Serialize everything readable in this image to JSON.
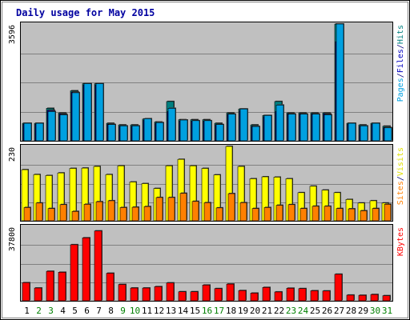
{
  "chart_data": {
    "type": "bar",
    "title": "Daily usage for May 2015",
    "days": [
      1,
      2,
      3,
      4,
      5,
      6,
      7,
      8,
      9,
      10,
      11,
      12,
      13,
      14,
      15,
      16,
      17,
      18,
      19,
      20,
      21,
      22,
      23,
      24,
      25,
      26,
      27,
      28,
      29,
      30,
      31
    ],
    "weekend_days": [
      2,
      3,
      9,
      10,
      16,
      17,
      23,
      24,
      30,
      31
    ],
    "panels": [
      {
        "id": "top",
        "ymax": 3596,
        "max_label": "3596",
        "legend": [
          {
            "text": "Pages",
            "color": "#00a0e0"
          },
          {
            "text": "/",
            "color": "#000080"
          },
          {
            "text": "Files",
            "color": "#0000c0"
          },
          {
            "text": "/",
            "color": "#000080"
          },
          {
            "text": "Hits",
            "color": "#008080"
          }
        ],
        "series": [
          {
            "name": "Hits",
            "color": "#008080",
            "values": [
              540,
              540,
              1000,
              860,
              1540,
              1760,
              1760,
              540,
              490,
              490,
              670,
              580,
              1210,
              650,
              650,
              650,
              540,
              860,
              980,
              490,
              780,
              1210,
              860,
              860,
              860,
              860,
              3596,
              540,
              490,
              540,
              450
            ]
          },
          {
            "name": "Files",
            "color": "#0000c0",
            "values": [
              510,
              510,
              940,
              830,
              1500,
              1720,
              1720,
              510,
              450,
              450,
              630,
              540,
              900,
              610,
              610,
              610,
              500,
              820,
              930,
              450,
              740,
              900,
              830,
              830,
              830,
              830,
              3050,
              510,
              450,
              510,
              410
            ]
          },
          {
            "name": "Pages",
            "color": "#00a0e0",
            "values": [
              540,
              540,
              900,
              800,
              1480,
              1760,
              1760,
              500,
              460,
              460,
              680,
              560,
              1000,
              640,
              620,
              620,
              500,
              820,
              980,
              440,
              780,
              1100,
              820,
              820,
              820,
              800,
              3596,
              540,
              460,
              540,
              400
            ]
          }
        ]
      },
      {
        "id": "mid",
        "ymax": 230,
        "max_label": "230",
        "legend": [
          {
            "text": "Sites",
            "color": "#ff8000"
          },
          {
            "text": "/",
            "color": "#000080"
          },
          {
            "text": "Visits",
            "color": "#e0e000"
          }
        ],
        "series": [
          {
            "name": "Visits",
            "color": "#ffff00",
            "values": [
              158,
              143,
              140,
              148,
              162,
              163,
              168,
              143,
              170,
              120,
              115,
              100,
              170,
              190,
              170,
              162,
              142,
              230,
              168,
              130,
              136,
              135,
              130,
              87,
              107,
              95,
              87,
              66,
              55,
              62,
              55
            ]
          },
          {
            "name": "Sites",
            "color": "#ff8000",
            "values": [
              41,
              55,
              38,
              50,
              29,
              51,
              59,
              62,
              41,
              42,
              44,
              72,
              72,
              85,
              60,
              56,
              40,
              84,
              56,
              38,
              41,
              48,
              50,
              38,
              45,
              45,
              38,
              37,
              31,
              38,
              51
            ]
          }
        ]
      },
      {
        "id": "bottom",
        "ymax": 37800,
        "max_label": "37800",
        "legend": [
          {
            "text": "KBytes",
            "color": "#ff0000"
          }
        ],
        "series": [
          {
            "name": "KBytes",
            "color": "#ff0000",
            "values": [
              9200,
              6500,
              15000,
              14500,
              28500,
              32000,
              35500,
              14000,
              8300,
              6500,
              6500,
              7200,
              9100,
              4600,
              4600,
              8000,
              6200,
              8500,
              5200,
              3900,
              6800,
              4500,
              6400,
              6200,
              5100,
              5000,
              13500,
              2900,
              2800,
              3200,
              2600
            ]
          }
        ]
      }
    ]
  }
}
